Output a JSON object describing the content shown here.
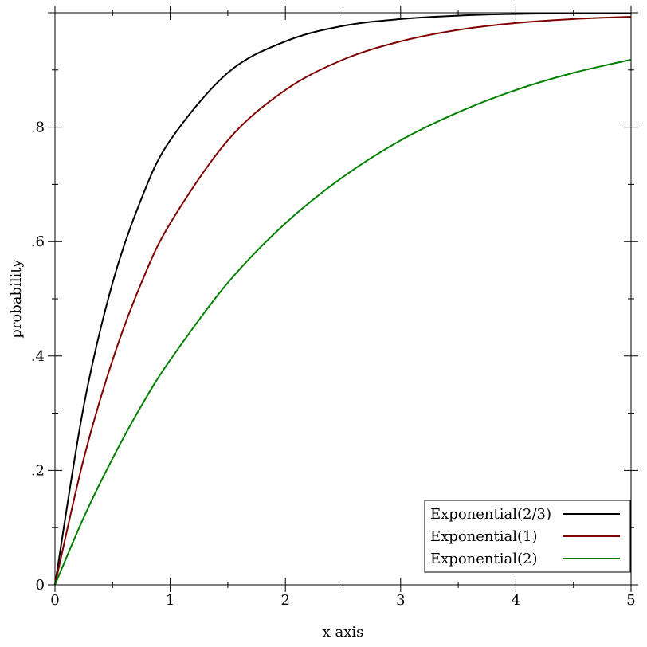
{
  "chart_data": {
    "type": "line",
    "xlabel": "x axis",
    "ylabel": "probability",
    "xlim": [
      0,
      5
    ],
    "ylim": [
      0,
      1
    ],
    "grid": false,
    "legend_position": "bottom-right",
    "x_ticks": [
      {
        "value": 0,
        "label": "0"
      },
      {
        "value": 1,
        "label": "1"
      },
      {
        "value": 2,
        "label": "2"
      },
      {
        "value": 3,
        "label": "3"
      },
      {
        "value": 4,
        "label": "4"
      },
      {
        "value": 5,
        "label": "5"
      }
    ],
    "y_ticks": [
      {
        "value": 0,
        "label": "0"
      },
      {
        "value": 0.2,
        "label": ".2"
      },
      {
        "value": 0.4,
        "label": ".4"
      },
      {
        "value": 0.6,
        "label": ".6"
      },
      {
        "value": 0.8,
        "label": ".8"
      }
    ],
    "series": [
      {
        "name": "Exponential(2/3)",
        "color": "#000000",
        "x": [
          0,
          0.25,
          0.5,
          0.75,
          1,
          1.5,
          2,
          2.5,
          3,
          3.5,
          4,
          4.5,
          5
        ],
        "y": [
          0,
          0.313,
          0.528,
          0.675,
          0.777,
          0.895,
          0.95,
          0.977,
          0.989,
          0.995,
          0.998,
          0.999,
          0.999
        ]
      },
      {
        "name": "Exponential(1)",
        "color": "#800000",
        "x": [
          0,
          0.25,
          0.5,
          0.75,
          1,
          1.5,
          2,
          2.5,
          3,
          3.5,
          4,
          4.5,
          5
        ],
        "y": [
          0,
          0.221,
          0.393,
          0.528,
          0.632,
          0.777,
          0.865,
          0.918,
          0.95,
          0.97,
          0.982,
          0.989,
          0.993
        ]
      },
      {
        "name": "Exponential(2)",
        "color": "#008000",
        "x": [
          0,
          0.25,
          0.5,
          0.75,
          1,
          1.5,
          2,
          2.5,
          3,
          3.5,
          4,
          4.5,
          5
        ],
        "y": [
          0,
          0.118,
          0.221,
          0.313,
          0.393,
          0.528,
          0.632,
          0.713,
          0.777,
          0.826,
          0.865,
          0.895,
          0.918
        ]
      }
    ]
  }
}
